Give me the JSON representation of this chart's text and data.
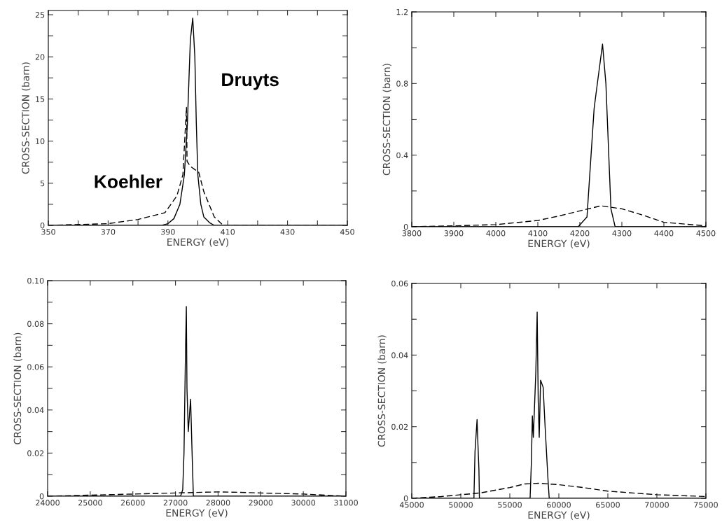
{
  "chart_data": [
    {
      "type": "line",
      "xlabel": "ENERGY (eV)",
      "ylabel": "CROSS-SECTION (barn)",
      "xlim": [
        350,
        450
      ],
      "ylim": [
        0,
        25.5
      ],
      "xticks": [
        350,
        {
          "value": 360,
          "label": null
        },
        370,
        {
          "value": 380,
          "label": null
        },
        390,
        {
          "value": 400,
          "label": null
        },
        410,
        {
          "value": 420,
          "label": null
        },
        430,
        {
          "value": 440,
          "label": null
        },
        450
      ],
      "yticks": [
        0,
        {
          "value": 2.5,
          "label": null
        },
        5,
        {
          "value": 7.5,
          "label": null
        },
        10,
        {
          "value": 12.5,
          "label": null
        },
        15,
        {
          "value": 17.5,
          "label": null
        },
        20,
        {
          "value": 22.5,
          "label": null
        },
        25
      ],
      "series": [
        {
          "name": "Druyts",
          "color": "#000000",
          "line_style": "solid",
          "x": [
            350,
            388,
            390,
            392,
            394,
            395.5,
            396.5,
            397,
            397.5,
            398.3,
            399,
            399.5,
            400,
            401,
            402,
            404,
            405.5,
            450
          ],
          "values": [
            0,
            0,
            0.2,
            0.8,
            2.5,
            6,
            12,
            17,
            22,
            24.6,
            20,
            12,
            6,
            2.5,
            1,
            0.3,
            0,
            0
          ]
        },
        {
          "name": "Koehler",
          "color": "#000000",
          "line_style": "dashed",
          "x": [
            350,
            370,
            380,
            389,
            393,
            395,
            396.2,
            396.4,
            397.5,
            399.5,
            400.3,
            402,
            405.5,
            408.5,
            450
          ],
          "values": [
            0,
            0.2,
            0.7,
            1.5,
            3.5,
            6,
            14,
            7.6,
            7,
            6.5,
            6.3,
            4,
            1,
            0,
            0
          ]
        }
      ]
    },
    {
      "type": "line",
      "xlabel": "ENERGY (eV)",
      "ylabel": "CROSS-SECTION (barn)",
      "xlim": [
        3800,
        4500
      ],
      "ylim": [
        0,
        1.2
      ],
      "xticks": [
        {
          "value": 3800,
          "label": "3800"
        },
        3900,
        4000,
        4100,
        4200,
        4300,
        4400,
        4500
      ],
      "yticks": [
        0,
        {
          "value": 0.2,
          "label": null
        },
        0.4,
        {
          "value": 0.6,
          "label": null
        },
        0.8,
        {
          "value": 1.0,
          "label": null
        },
        1.2
      ],
      "series": [
        {
          "color": "#000000",
          "line_style": "solid",
          "x": [
            3800,
            4196,
            4217,
            4234,
            4240,
            4254,
            4262,
            4274,
            4284,
            4500
          ],
          "values": [
            0,
            0,
            0.055,
            0.66,
            0.77,
            1.02,
            0.8,
            0.1,
            0,
            0
          ]
        },
        {
          "color": "#000000",
          "line_style": "dashed",
          "x": [
            3800,
            3900,
            4000,
            4100,
            4150,
            4220,
            4250,
            4300,
            4350,
            4400,
            4500
          ],
          "values": [
            0,
            0.005,
            0.012,
            0.035,
            0.06,
            0.1,
            0.117,
            0.1,
            0.065,
            0.025,
            0.005
          ]
        }
      ]
    },
    {
      "type": "line",
      "xlabel": "ENERGY (eV)",
      "ylabel": "CROSS-SECTION (barn)",
      "xlim": [
        24000,
        31000
      ],
      "ylim": [
        0,
        0.1
      ],
      "xticks": [
        24000,
        25000,
        26000,
        27000,
        28000,
        29000,
        30000,
        31000
      ],
      "yticks": [
        0,
        {
          "value": 0.01,
          "label": null
        },
        0.02,
        {
          "value": 0.03,
          "label": null
        },
        0.04,
        {
          "value": 0.05,
          "label": null
        },
        0.06,
        {
          "value": 0.07,
          "label": null
        },
        0.08,
        {
          "value": 0.09,
          "label": null
        },
        {
          "value": 0.1,
          "label": "0.10"
        }
      ],
      "series": [
        {
          "color": "#000000",
          "line_style": "solid",
          "x": [
            24000,
            27120,
            27170,
            27200,
            27230,
            27255,
            27270,
            27300,
            27355,
            27390,
            27420,
            31000
          ],
          "values": [
            0,
            0,
            0.003,
            0.02,
            0.06,
            0.088,
            0.05,
            0.03,
            0.045,
            0.02,
            0,
            0
          ]
        },
        {
          "color": "#000000",
          "line_style": "dashed",
          "x": [
            24000,
            25000,
            26000,
            27000,
            28000,
            28500,
            29000,
            30000,
            31000
          ],
          "values": [
            0,
            0.0005,
            0.001,
            0.0015,
            0.002,
            0.0018,
            0.0015,
            0.001,
            0
          ]
        }
      ]
    },
    {
      "type": "line",
      "xlabel": "ENERGY (eV)",
      "ylabel": "CROSS-SECTION (barn)",
      "xlim": [
        45000,
        75000
      ],
      "ylim": [
        0,
        0.06
      ],
      "xticks": [
        45000,
        50000,
        55000,
        60000,
        65000,
        70000,
        75000
      ],
      "yticks": [
        0,
        {
          "value": 0.01,
          "label": null
        },
        0.02,
        {
          "value": 0.03,
          "label": null
        },
        0.04,
        {
          "value": 0.05,
          "label": null
        },
        0.06
      ],
      "series": [
        {
          "color": "#000000",
          "line_style": "solid",
          "x": [
            45000,
            51340,
            51450,
            51660,
            51750,
            51850,
            51900,
            57070,
            57200,
            57300,
            57400,
            57650,
            57790,
            57900,
            58000,
            58140,
            58400,
            58600,
            58900,
            59020,
            75000
          ],
          "values": [
            0,
            0,
            0.013,
            0.022,
            0.015,
            0.008,
            0,
            0,
            0.01,
            0.023,
            0.017,
            0.035,
            0.052,
            0.027,
            0.017,
            0.033,
            0.031,
            0.02,
            0.005,
            0,
            0
          ]
        },
        {
          "color": "#000000",
          "line_style": "dashed",
          "x": [
            45000,
            48000,
            50000,
            52000,
            55000,
            56500,
            58000,
            60000,
            62500,
            65000,
            70000,
            75000
          ],
          "values": [
            0,
            0.0005,
            0.001,
            0.0015,
            0.003,
            0.004,
            0.0042,
            0.0038,
            0.003,
            0.002,
            0.001,
            0.0005
          ]
        }
      ]
    }
  ]
}
